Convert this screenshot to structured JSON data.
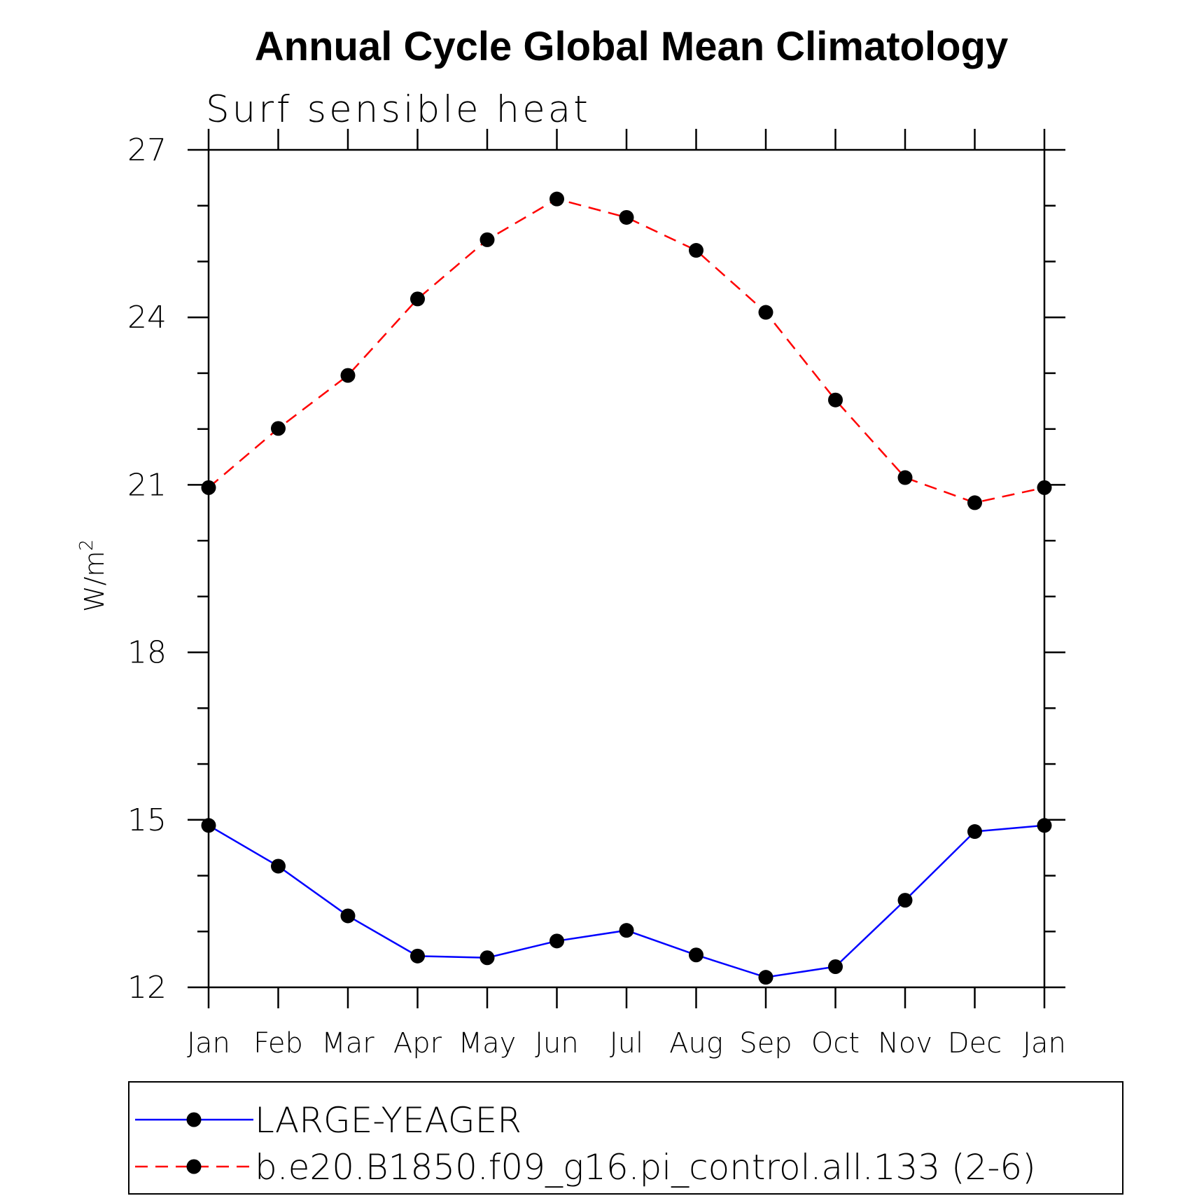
{
  "chart_data": {
    "type": "line",
    "title": "Annual Cycle Global Mean Climatology",
    "subtitle": "Surf sensible heat",
    "ylabel": "W/m",
    "ylabel_superscript": "2",
    "xlabel": "",
    "categories": [
      "Jan",
      "Feb",
      "Mar",
      "Apr",
      "May",
      "Jun",
      "Jul",
      "Aug",
      "Sep",
      "Oct",
      "Nov",
      "Dec",
      "Jan"
    ],
    "ylim": [
      12,
      27
    ],
    "yticks": [
      12,
      15,
      18,
      21,
      24,
      27
    ],
    "y_minor_step": 1,
    "grid": false,
    "legend_position": "bottom",
    "series": [
      {
        "name": "LARGE-YEAGER",
        "color": "#0000ff",
        "line_style": "solid",
        "marker": "filled-circle",
        "marker_color": "#000000",
        "values": [
          14.9,
          14.17,
          13.28,
          12.56,
          12.53,
          12.83,
          13.02,
          12.58,
          12.18,
          12.37,
          13.56,
          14.79,
          14.9
        ]
      },
      {
        "name": "b.e20.B1850.f09_g16.pi_control.all.133 (2-6)",
        "color": "#ff0000",
        "line_style": "dashed",
        "marker": "filled-circle",
        "marker_color": "#000000",
        "values": [
          20.95,
          22.01,
          22.96,
          24.33,
          25.39,
          26.12,
          25.79,
          25.2,
          24.09,
          22.52,
          21.13,
          20.68,
          20.95
        ]
      }
    ]
  }
}
